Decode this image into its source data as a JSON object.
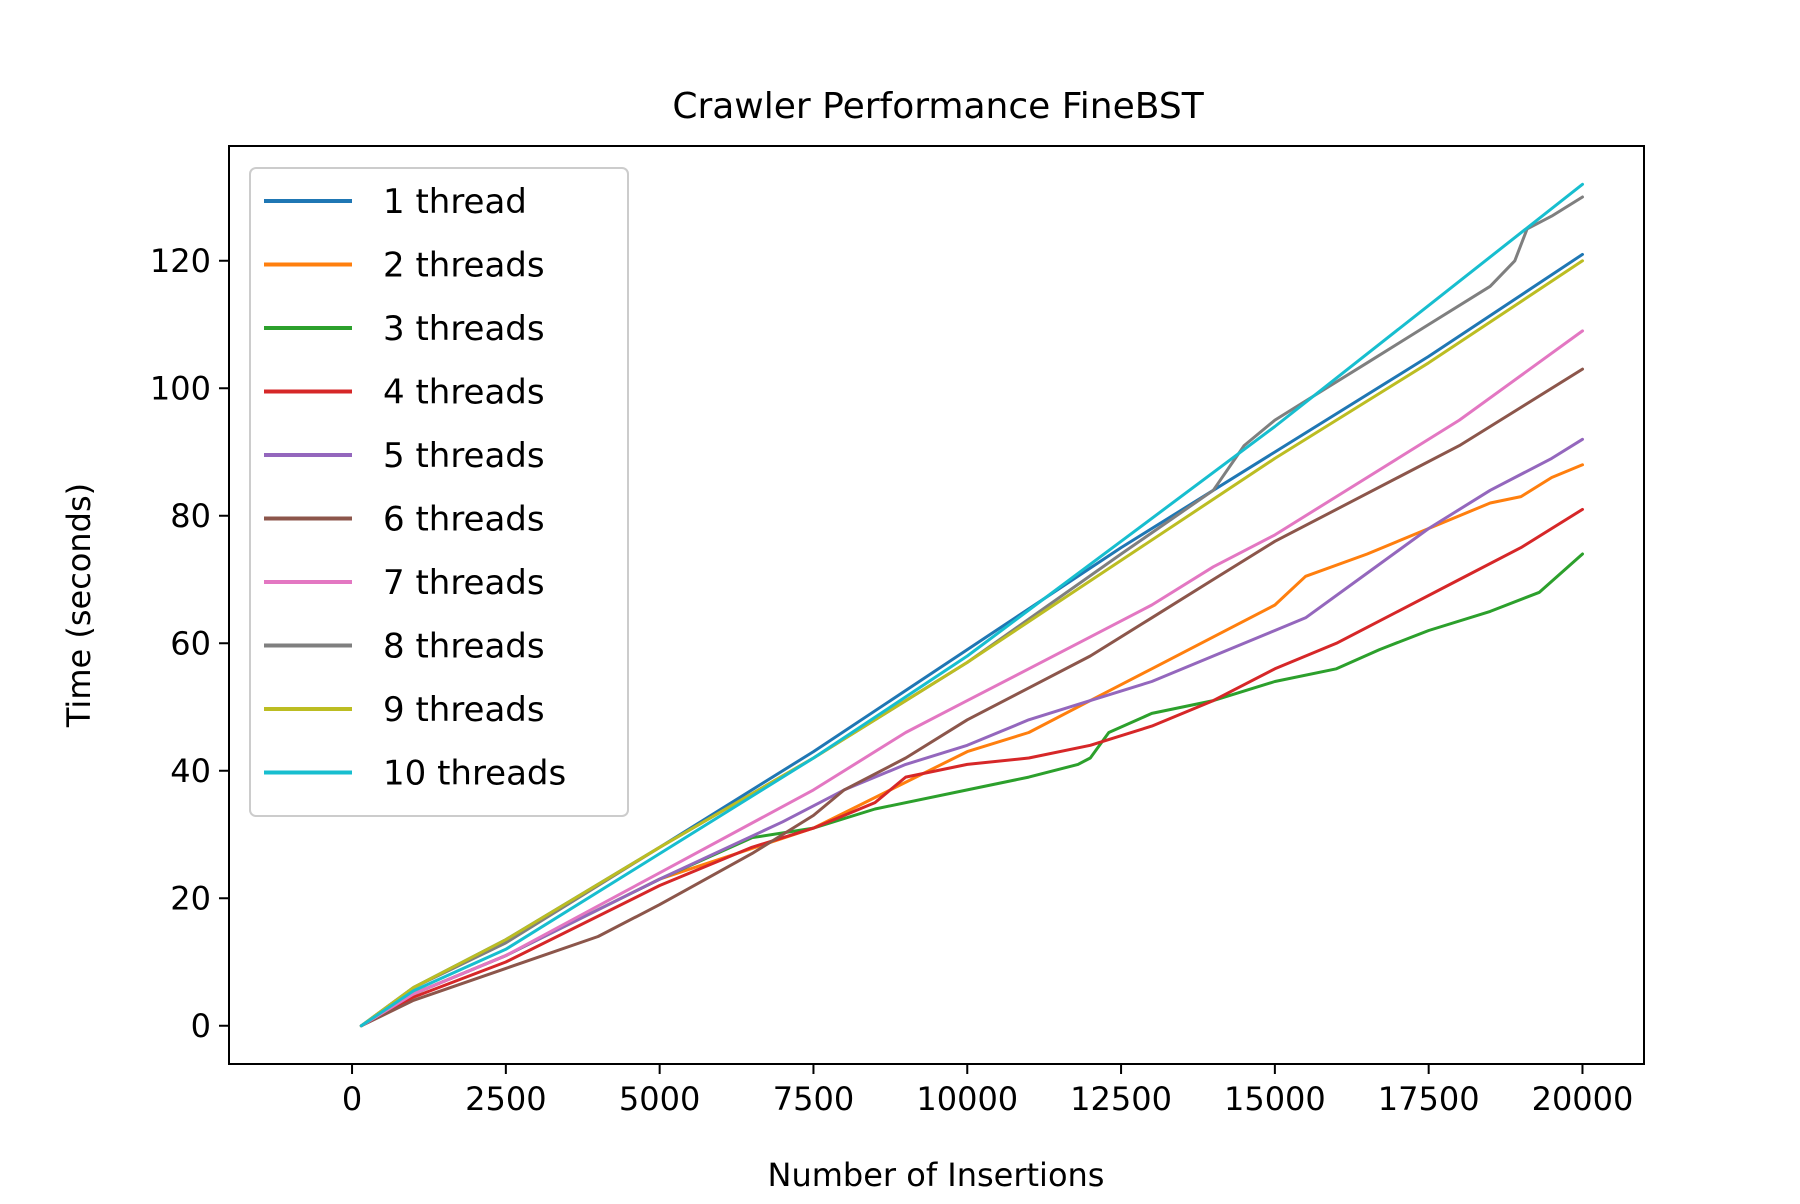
{
  "chart_data": {
    "type": "line",
    "title": "Crawler Performance FineBST",
    "xlabel": "Number of Insertions",
    "ylabel": "Time (seconds)",
    "xlim": [
      -2000,
      21000
    ],
    "ylim": [
      -6,
      138
    ],
    "xticks": [
      0,
      2500,
      5000,
      7500,
      10000,
      12500,
      15000,
      17500,
      20000
    ],
    "xtick_labels": [
      "0",
      "2500",
      "5000",
      "7500",
      "10000",
      "12500",
      "15000",
      "17500",
      "20000"
    ],
    "yticks": [
      0,
      20,
      40,
      60,
      80,
      100,
      120
    ],
    "ytick_labels": [
      "0",
      "20",
      "40",
      "60",
      "80",
      "100",
      "120"
    ],
    "grid": false,
    "legend_position": "upper-left",
    "series": [
      {
        "name": "1 thread",
        "color": "#1f77b4",
        "x": [
          150,
          1000,
          2500,
          5000,
          7500,
          10000,
          12500,
          15000,
          17500,
          20000
        ],
        "y": [
          0,
          6,
          13.5,
          28,
          43,
          59,
          75,
          90,
          105,
          121
        ]
      },
      {
        "name": "2 threads",
        "color": "#ff7f0e",
        "x": [
          150,
          1000,
          2500,
          5000,
          7500,
          10000,
          11000,
          12000,
          13000,
          14000,
          15000,
          15500,
          16500,
          17500,
          18500,
          19000,
          19500,
          20000
        ],
        "y": [
          0,
          5,
          11,
          23,
          31,
          43,
          46,
          51,
          56,
          61,
          66,
          70.5,
          74,
          78,
          82,
          83,
          86,
          88
        ]
      },
      {
        "name": "3 threads",
        "color": "#2ca02c",
        "x": [
          150,
          1000,
          2500,
          5000,
          6500,
          7500,
          8500,
          10000,
          11000,
          11800,
          12000,
          12300,
          13000,
          14000,
          15000,
          16000,
          16700,
          17500,
          18500,
          19300,
          20000
        ],
        "y": [
          0,
          5,
          11,
          23,
          29.5,
          31,
          34,
          37,
          39,
          41,
          42,
          46,
          49,
          51,
          54,
          56,
          59,
          62,
          65,
          68,
          74
        ]
      },
      {
        "name": "4 threads",
        "color": "#d62728",
        "x": [
          150,
          1000,
          2500,
          5000,
          6500,
          7500,
          8500,
          9000,
          10000,
          11000,
          12000,
          13000,
          14000,
          15000,
          16000,
          17000,
          18000,
          19000,
          20000
        ],
        "y": [
          0,
          4.5,
          10,
          22,
          28,
          31,
          35,
          39,
          41,
          42,
          44,
          47,
          51,
          56,
          60,
          65,
          70,
          75,
          81
        ]
      },
      {
        "name": "5 threads",
        "color": "#9467bd",
        "x": [
          150,
          1000,
          2500,
          5000,
          7000,
          8000,
          9000,
          10000,
          11000,
          12000,
          13000,
          14000,
          15000,
          15500,
          16500,
          17500,
          18500,
          19500,
          20000
        ],
        "y": [
          0,
          5,
          11,
          23,
          32,
          37,
          41,
          44,
          48,
          51,
          54,
          58,
          62,
          64,
          71,
          78,
          84,
          89,
          92
        ]
      },
      {
        "name": "6 threads",
        "color": "#8c564b",
        "x": [
          150,
          1000,
          2500,
          4000,
          5000,
          6500,
          7500,
          8000,
          9000,
          10000,
          11000,
          12000,
          13000,
          14000,
          15000,
          16000,
          17000,
          18000,
          19000,
          20000
        ],
        "y": [
          0,
          4,
          9,
          14,
          19,
          27,
          33,
          37,
          42,
          48,
          53,
          58,
          64,
          70,
          76,
          81,
          86,
          91,
          97,
          103
        ]
      },
      {
        "name": "7 threads",
        "color": "#e377c2",
        "x": [
          150,
          1000,
          2500,
          5000,
          7500,
          9000,
          10000,
          11000,
          12000,
          13000,
          14000,
          15000,
          16000,
          17000,
          18000,
          19000,
          20000
        ],
        "y": [
          0,
          5,
          11,
          24,
          37,
          46,
          51,
          56,
          61,
          66,
          72,
          77,
          83,
          89,
          95,
          102,
          109
        ]
      },
      {
        "name": "8 threads",
        "color": "#7f7f7f",
        "x": [
          150,
          1000,
          2500,
          5000,
          7500,
          10000,
          12500,
          14000,
          14500,
          15000,
          15500,
          16500,
          17500,
          18500,
          18900,
          19100,
          19500,
          20000
        ],
        "y": [
          0,
          6,
          13,
          28,
          42,
          57,
          74,
          84,
          91,
          95,
          98,
          104,
          110,
          116,
          120,
          125,
          127,
          130
        ]
      },
      {
        "name": "9 threads",
        "color": "#bcbd22",
        "x": [
          150,
          1000,
          2500,
          5000,
          7500,
          10000,
          12500,
          15000,
          17500,
          20000
        ],
        "y": [
          0,
          6,
          13.5,
          28,
          42,
          57,
          73,
          89,
          104,
          120
        ]
      },
      {
        "name": "10 threads",
        "color": "#17becf",
        "x": [
          150,
          1000,
          2500,
          5000,
          7500,
          10000,
          12500,
          15000,
          17500,
          20000
        ],
        "y": [
          0,
          5.5,
          12,
          27,
          42,
          58,
          76,
          94,
          113,
          132
        ]
      }
    ]
  }
}
